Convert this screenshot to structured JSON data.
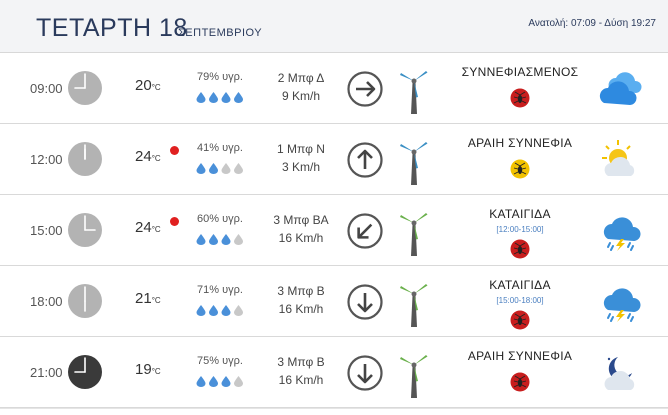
{
  "header": {
    "day": "ΤΕΤΑΡΤΗ 18",
    "month": "ΣΕΠΤΕΜΒΡΙΟΥ",
    "sun": "Ανατολή: 07:09 - Δύση 19:27"
  },
  "rows": [
    {
      "time": "09:00",
      "clock_style": "light",
      "hour": 9,
      "temp": "20",
      "unit": "°C",
      "alert": false,
      "humidity": "79% υγρ.",
      "drops_filled": 4,
      "wind_force": "2 Μπφ Δ",
      "wind_speed": "9 Km/h",
      "direction_icon": "arrow-right-icon",
      "arrow_angle": 90,
      "turbine_color": "#3a8fc4",
      "condition": "ΣΥΝΝΕΦΙΑΣΜΕΝΟΣ",
      "range": "",
      "bug_color": "#c81e1e",
      "weather_icon": "cloudy-icon"
    },
    {
      "time": "12:00",
      "clock_style": "light",
      "hour": 12,
      "temp": "24",
      "unit": "°C",
      "alert": true,
      "humidity": "41% υγρ.",
      "drops_filled": 2,
      "wind_force": "1 Μπφ Ν",
      "wind_speed": "3 Km/h",
      "direction_icon": "arrow-up-icon",
      "arrow_angle": 0,
      "turbine_color": "#3a8fc4",
      "condition": "ΑΡΑΙΗ ΣΥΝΝΕΦΙΑ",
      "range": "",
      "bug_color": "#f2c200",
      "weather_icon": "partly-sunny-icon"
    },
    {
      "time": "15:00",
      "clock_style": "light",
      "hour": 15,
      "temp": "24",
      "unit": "°C",
      "alert": true,
      "humidity": "60% υγρ.",
      "drops_filled": 3,
      "wind_force": "3 Μπφ ΒΑ",
      "wind_speed": "16 Km/h",
      "direction_icon": "arrow-down-left-icon",
      "arrow_angle": 225,
      "turbine_color": "#6ab04c",
      "condition": "ΚΑΤΑΙΓΙΔΑ",
      "range": "[12:00-15:00]",
      "bug_color": "#c81e1e",
      "weather_icon": "thunderstorm-icon"
    },
    {
      "time": "18:00",
      "clock_style": "light",
      "hour": 18,
      "temp": "21",
      "unit": "°C",
      "alert": false,
      "humidity": "71% υγρ.",
      "drops_filled": 3,
      "wind_force": "3 Μπφ Β",
      "wind_speed": "16 Km/h",
      "direction_icon": "arrow-down-icon",
      "arrow_angle": 180,
      "turbine_color": "#6ab04c",
      "condition": "ΚΑΤΑΙΓΙΔΑ",
      "range": "[15:00-18:00]",
      "bug_color": "#c81e1e",
      "weather_icon": "thunderstorm-icon"
    },
    {
      "time": "21:00",
      "clock_style": "dark",
      "hour": 21,
      "temp": "19",
      "unit": "°C",
      "alert": false,
      "humidity": "75% υγρ.",
      "drops_filled": 3,
      "wind_force": "3 Μπφ Β",
      "wind_speed": "16 Km/h",
      "direction_icon": "arrow-down-icon",
      "arrow_angle": 180,
      "turbine_color": "#6ab04c",
      "condition": "ΑΡΑΙΗ ΣΥΝΝΕΦΙΑ",
      "range": "",
      "bug_color": "#c81e1e",
      "weather_icon": "moon-cloud-icon"
    }
  ]
}
